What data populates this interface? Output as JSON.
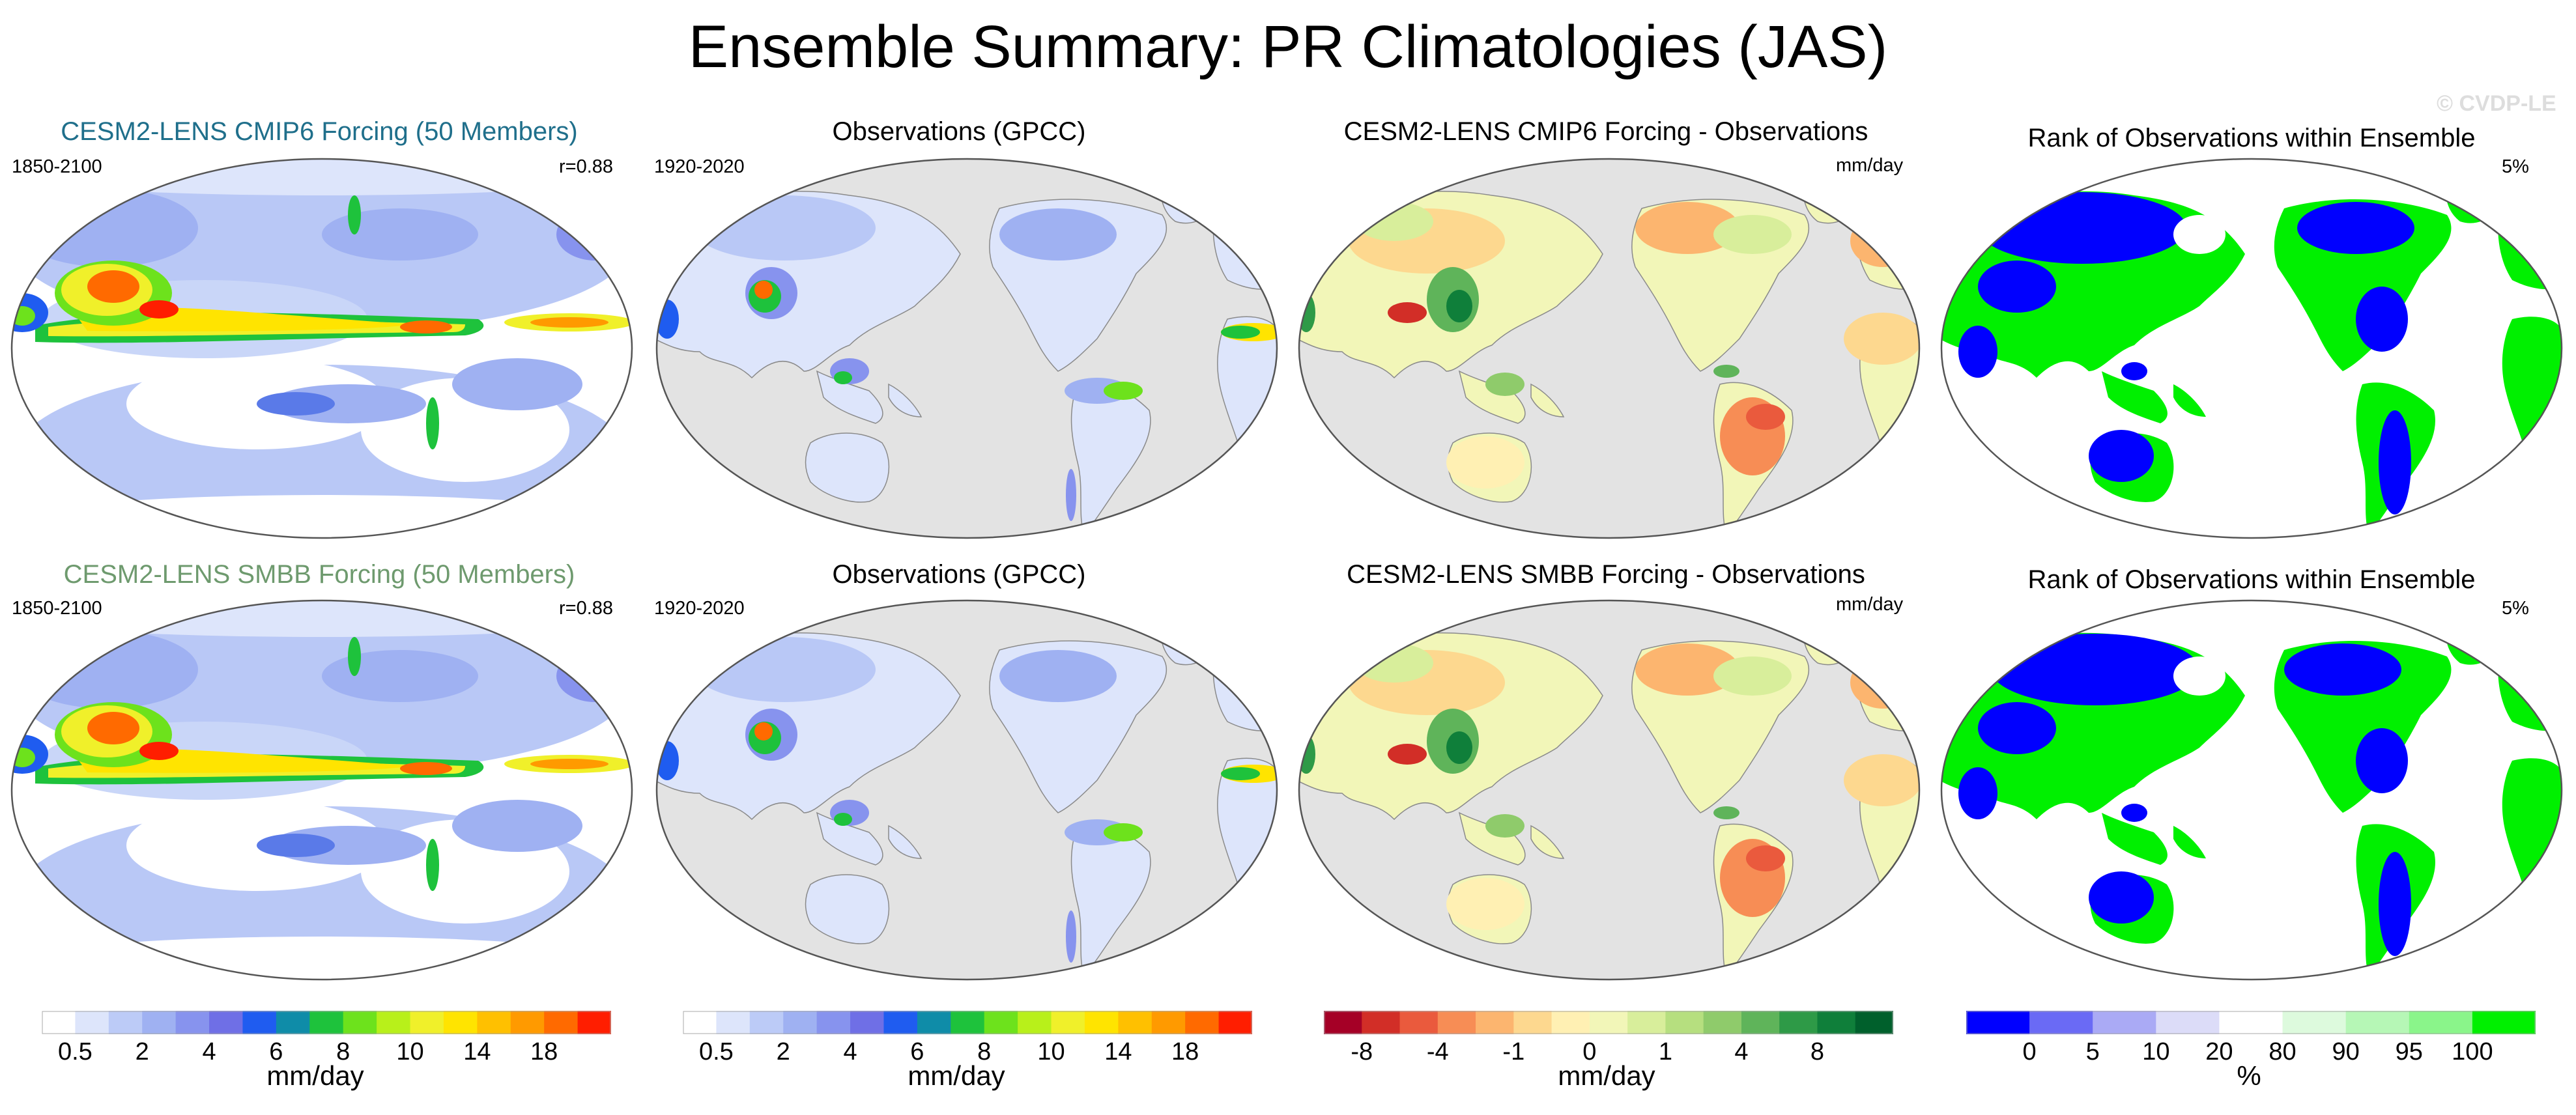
{
  "title": "Ensemble Summary: PR Climatologies (JAS)",
  "copyright": "© CVDP-LE",
  "colors": {
    "row1_title": "#1f6f8b",
    "row2_title": "#6e9a6e",
    "ocean_gray": "#e3e3e3",
    "coast": "#8a8a8a"
  },
  "rows": [
    {
      "panels": [
        {
          "title": "CESM2-LENS CMIP6 Forcing (50 Members)",
          "left": "1850-2100",
          "right": "r=0.88",
          "kind": "model",
          "title_color": "#1f6f8b"
        },
        {
          "title": "Observations (GPCC)",
          "left": "1920-2020",
          "right": "",
          "kind": "obs",
          "title_color": "#000000"
        },
        {
          "title": "CESM2-LENS CMIP6 Forcing - Observations",
          "left": "",
          "right": "mm/day",
          "kind": "diff",
          "title_color": "#000000"
        },
        {
          "title": "Rank of Observations within Ensemble",
          "left": "",
          "right": "5%",
          "kind": "rank",
          "title_color": "#000000"
        }
      ]
    },
    {
      "panels": [
        {
          "title": "CESM2-LENS SMBB Forcing (50 Members)",
          "left": "1850-2100",
          "right": "r=0.88",
          "kind": "model",
          "title_color": "#6e9a6e"
        },
        {
          "title": "Observations (GPCC)",
          "left": "1920-2020",
          "right": "",
          "kind": "obs",
          "title_color": "#000000"
        },
        {
          "title": "CESM2-LENS SMBB Forcing - Observations",
          "left": "",
          "right": "mm/day",
          "kind": "diff",
          "title_color": "#000000"
        },
        {
          "title": "Rank of Observations within Ensemble",
          "left": "",
          "right": "5%",
          "kind": "rank",
          "title_color": "#000000"
        }
      ]
    }
  ],
  "colorbars": [
    {
      "unit": "mm/day",
      "colors": [
        "#ffffff",
        "#dde5fb",
        "#bccbf7",
        "#9fb1f2",
        "#8793ee",
        "#6f6fe6",
        "#1f5cf0",
        "#0f8ca8",
        "#1ec23c",
        "#6de21c",
        "#b8f01a",
        "#f0f02a",
        "#ffe400",
        "#ffc000",
        "#ff9a00",
        "#ff6a00",
        "#ff1e00"
      ],
      "labels": [
        {
          "t": "0.5",
          "i": 1
        },
        {
          "t": "2",
          "i": 3
        },
        {
          "t": "4",
          "i": 5
        },
        {
          "t": "6",
          "i": 7
        },
        {
          "t": "8",
          "i": 9
        },
        {
          "t": "10",
          "i": 11
        },
        {
          "t": "14",
          "i": 13
        },
        {
          "t": "18",
          "i": 15
        }
      ]
    },
    {
      "unit": "mm/day",
      "colors": [
        "#ffffff",
        "#dde5fb",
        "#bccbf7",
        "#9fb1f2",
        "#8793ee",
        "#6f6fe6",
        "#1f5cf0",
        "#0f8ca8",
        "#1ec23c",
        "#6de21c",
        "#b8f01a",
        "#f0f02a",
        "#ffe400",
        "#ffc000",
        "#ff9a00",
        "#ff6a00",
        "#ff1e00"
      ],
      "labels": [
        {
          "t": "0.5",
          "i": 1
        },
        {
          "t": "2",
          "i": 3
        },
        {
          "t": "4",
          "i": 5
        },
        {
          "t": "6",
          "i": 7
        },
        {
          "t": "8",
          "i": 9
        },
        {
          "t": "10",
          "i": 11
        },
        {
          "t": "14",
          "i": 13
        },
        {
          "t": "18",
          "i": 15
        }
      ]
    },
    {
      "unit": "mm/day",
      "colors": [
        "#a50026",
        "#d22e27",
        "#ea5a3d",
        "#f78d55",
        "#fcb56f",
        "#fdd88f",
        "#fff0b3",
        "#f2f6b8",
        "#d8ee9b",
        "#b6df7f",
        "#8fcb6b",
        "#5fb45a",
        "#2e9a47",
        "#0f7f3a",
        "#00602c"
      ],
      "labels": [
        {
          "t": "-8",
          "i": 1
        },
        {
          "t": "-4",
          "i": 3
        },
        {
          "t": "-1",
          "i": 5
        },
        {
          "t": "0",
          "i": 7
        },
        {
          "t": "1",
          "i": 9
        },
        {
          "t": "4",
          "i": 11
        },
        {
          "t": "8",
          "i": 13
        }
      ]
    },
    {
      "unit": "%",
      "colors": [
        "#0000ff",
        "#6a6af5",
        "#aaaaf5",
        "#dcdcf8",
        "#ffffff",
        "#ddfadd",
        "#b6f7b6",
        "#8af58a",
        "#00f000"
      ],
      "labels": [
        {
          "t": "0",
          "i": 1
        },
        {
          "t": "5",
          "i": 2
        },
        {
          "t": "10",
          "i": 3
        },
        {
          "t": "20",
          "i": 4
        },
        {
          "t": "80",
          "i": 5
        },
        {
          "t": "90",
          "i": 6
        },
        {
          "t": "95",
          "i": 7
        },
        {
          "t": "100",
          "i": 8
        }
      ]
    }
  ]
}
